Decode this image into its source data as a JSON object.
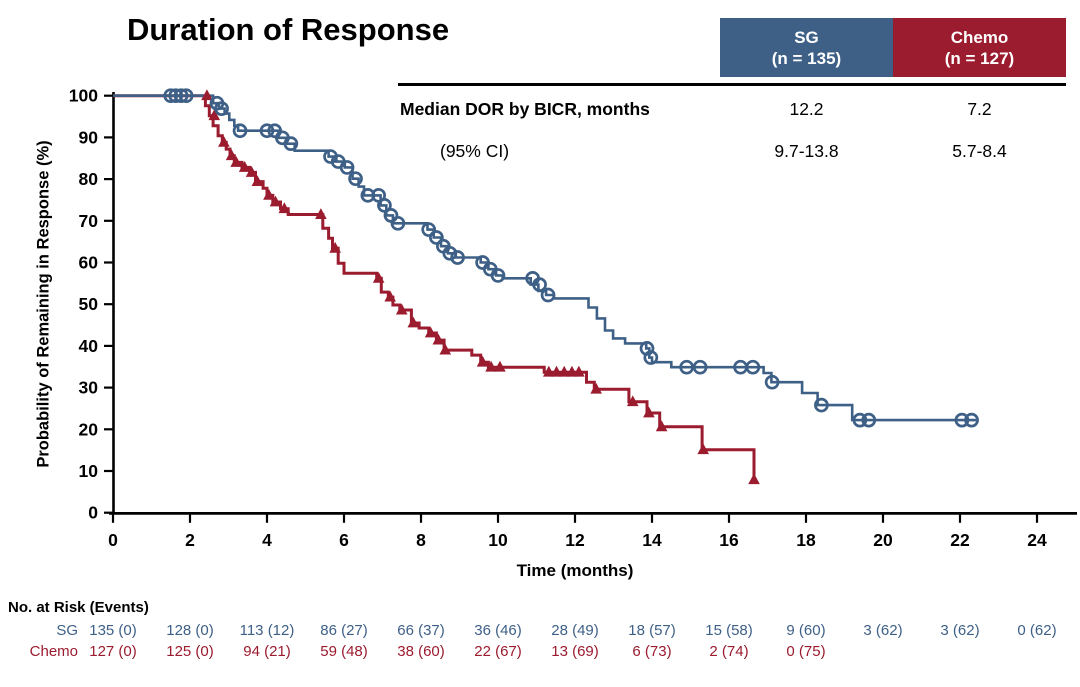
{
  "title": "Duration of Response",
  "colors": {
    "sg": "#3E6087",
    "chemo": "#9B1B2F",
    "axis": "#000000",
    "background": "#FFFFFF"
  },
  "summary_table": {
    "header": {
      "sg": {
        "line1": "SG",
        "line2": "(n = 135)"
      },
      "chemo": {
        "line1": "Chemo",
        "line2": "(n = 127)"
      }
    },
    "rows": [
      {
        "label": "Median DOR by BICR, months",
        "values": [
          "12.2",
          "7.2"
        ]
      },
      {
        "label": "(95% CI)",
        "values": [
          "9.7-13.8",
          "5.7-8.4"
        ]
      }
    ]
  },
  "chart_data": {
    "type": "line",
    "subtype": "kaplan-meier-step",
    "title": "Duration of Response",
    "xlabel": "Time (months)",
    "ylabel": "Probability of Remaining in Response (%)",
    "xlim": [
      0,
      24
    ],
    "ylim": [
      0,
      100
    ],
    "xticks": [
      0,
      2,
      4,
      6,
      8,
      10,
      12,
      14,
      16,
      18,
      20,
      22,
      24
    ],
    "yticks": [
      0,
      10,
      20,
      30,
      40,
      50,
      60,
      70,
      80,
      90,
      100
    ],
    "grid": false,
    "legend_position": "none",
    "series": [
      {
        "name": "Chemo",
        "marker": "triangle",
        "line_width": 3,
        "start": [
          0,
          100
        ],
        "end_time": 16.72,
        "steps": [
          [
            2.4,
            97.6
          ],
          [
            2.5,
            95.2
          ],
          [
            2.6,
            92.8
          ],
          [
            2.73,
            90.4
          ],
          [
            2.84,
            88.8
          ],
          [
            2.94,
            87.2
          ],
          [
            3.04,
            85.6
          ],
          [
            3.15,
            84.0
          ],
          [
            3.35,
            82.8
          ],
          [
            3.55,
            81.6
          ],
          [
            3.7,
            79.4
          ],
          [
            3.9,
            77.8
          ],
          [
            4.0,
            76.1
          ],
          [
            4.15,
            74.5
          ],
          [
            4.35,
            72.9
          ],
          [
            4.55,
            71.5
          ],
          [
            5.45,
            68.2
          ],
          [
            5.6,
            65.8
          ],
          [
            5.7,
            63.4
          ],
          [
            5.85,
            59.8
          ],
          [
            6.0,
            57.4
          ],
          [
            6.85,
            56.2
          ],
          [
            6.97,
            52.9
          ],
          [
            7.15,
            51.7
          ],
          [
            7.27,
            49.8
          ],
          [
            7.45,
            48.6
          ],
          [
            7.75,
            45.5
          ],
          [
            7.95,
            44.3
          ],
          [
            8.2,
            43.1
          ],
          [
            8.4,
            41.4
          ],
          [
            8.6,
            39.0
          ],
          [
            9.32,
            37.8
          ],
          [
            9.55,
            36.1
          ],
          [
            9.75,
            34.9
          ],
          [
            11.2,
            33.7
          ],
          [
            12.3,
            31.3
          ],
          [
            12.5,
            29.6
          ],
          [
            13.4,
            26.6
          ],
          [
            13.87,
            23.9
          ],
          [
            14.2,
            20.6
          ],
          [
            15.3,
            15.1
          ],
          [
            16.65,
            7.9
          ]
        ],
        "censors": [
          [
            2.44,
            100
          ],
          [
            2.63,
            95.2
          ],
          [
            2.88,
            88.8
          ],
          [
            3.08,
            85.6
          ],
          [
            3.2,
            84.0
          ],
          [
            3.42,
            82.8
          ],
          [
            3.6,
            81.6
          ],
          [
            3.75,
            79.4
          ],
          [
            4.05,
            76.1
          ],
          [
            4.22,
            74.5
          ],
          [
            4.45,
            72.9
          ],
          [
            5.4,
            71.5
          ],
          [
            5.77,
            63.4
          ],
          [
            6.9,
            56.2
          ],
          [
            7.2,
            51.7
          ],
          [
            7.5,
            48.6
          ],
          [
            7.8,
            45.5
          ],
          [
            8.25,
            43.1
          ],
          [
            8.45,
            41.4
          ],
          [
            8.63,
            39.0
          ],
          [
            9.6,
            36.1
          ],
          [
            9.82,
            34.9
          ],
          [
            10.05,
            34.9
          ],
          [
            11.32,
            33.7
          ],
          [
            11.52,
            33.7
          ],
          [
            11.72,
            33.7
          ],
          [
            11.92,
            33.7
          ],
          [
            12.1,
            33.7
          ],
          [
            12.55,
            29.6
          ],
          [
            13.5,
            26.6
          ],
          [
            13.92,
            23.9
          ],
          [
            14.25,
            20.6
          ],
          [
            15.33,
            15.1
          ],
          [
            16.65,
            7.9
          ]
        ]
      },
      {
        "name": "SG",
        "marker": "circle",
        "line_width": 2.6,
        "start": [
          0,
          100
        ],
        "end_time": 22.42,
        "steps": [
          [
            2.6,
            98.2
          ],
          [
            2.75,
            96.9
          ],
          [
            2.9,
            95.7
          ],
          [
            3.02,
            94.2
          ],
          [
            3.15,
            92.8
          ],
          [
            3.25,
            91.6
          ],
          [
            4.3,
            89.9
          ],
          [
            4.5,
            88.5
          ],
          [
            4.72,
            86.8
          ],
          [
            5.6,
            85.4
          ],
          [
            5.8,
            84.2
          ],
          [
            6.02,
            82.8
          ],
          [
            6.22,
            80.1
          ],
          [
            6.38,
            78.2
          ],
          [
            6.52,
            76.1
          ],
          [
            6.95,
            73.7
          ],
          [
            7.1,
            71.3
          ],
          [
            7.27,
            69.4
          ],
          [
            8.17,
            67.9
          ],
          [
            8.33,
            66.0
          ],
          [
            8.52,
            63.9
          ],
          [
            8.7,
            62.2
          ],
          [
            8.9,
            61.2
          ],
          [
            9.55,
            60.0
          ],
          [
            9.75,
            58.4
          ],
          [
            9.95,
            56.9
          ],
          [
            10.12,
            56.2
          ],
          [
            10.85,
            54.7
          ],
          [
            11.05,
            53.2
          ],
          [
            11.25,
            52.2
          ],
          [
            11.45,
            51.4
          ],
          [
            12.35,
            49.2
          ],
          [
            12.57,
            46.6
          ],
          [
            12.78,
            43.7
          ],
          [
            12.99,
            41.8
          ],
          [
            13.3,
            40.6
          ],
          [
            13.85,
            39.4
          ],
          [
            13.93,
            37.2
          ],
          [
            14.0,
            36.1
          ],
          [
            14.5,
            34.9
          ],
          [
            16.9,
            33.5
          ],
          [
            17.1,
            31.3
          ],
          [
            17.9,
            28.7
          ],
          [
            18.3,
            25.8
          ],
          [
            19.2,
            22.2
          ]
        ],
        "censors": [
          [
            1.5,
            100
          ],
          [
            1.63,
            100
          ],
          [
            1.77,
            100
          ],
          [
            1.9,
            100
          ],
          [
            2.7,
            98.2
          ],
          [
            2.82,
            96.9
          ],
          [
            3.3,
            91.6
          ],
          [
            4.0,
            91.6
          ],
          [
            4.2,
            91.6
          ],
          [
            4.4,
            89.9
          ],
          [
            4.62,
            88.5
          ],
          [
            5.65,
            85.4
          ],
          [
            5.85,
            84.2
          ],
          [
            6.08,
            82.8
          ],
          [
            6.3,
            80.1
          ],
          [
            6.62,
            76.1
          ],
          [
            6.9,
            76.1
          ],
          [
            7.05,
            73.7
          ],
          [
            7.22,
            71.3
          ],
          [
            7.4,
            69.4
          ],
          [
            8.2,
            67.9
          ],
          [
            8.4,
            66.0
          ],
          [
            8.58,
            63.9
          ],
          [
            8.75,
            62.2
          ],
          [
            8.95,
            61.2
          ],
          [
            9.6,
            60.0
          ],
          [
            9.8,
            58.4
          ],
          [
            10.0,
            56.9
          ],
          [
            10.9,
            56.2
          ],
          [
            11.08,
            54.7
          ],
          [
            11.3,
            52.2
          ],
          [
            13.87,
            39.4
          ],
          [
            13.97,
            37.2
          ],
          [
            14.9,
            34.9
          ],
          [
            15.25,
            34.9
          ],
          [
            16.3,
            34.9
          ],
          [
            16.62,
            34.9
          ],
          [
            17.12,
            31.3
          ],
          [
            18.4,
            25.8
          ],
          [
            19.4,
            22.2
          ],
          [
            19.63,
            22.2
          ],
          [
            22.05,
            22.2
          ],
          [
            22.3,
            22.2
          ]
        ]
      }
    ]
  },
  "risk_table": {
    "title": "No. at Risk (Events)",
    "months": [
      0,
      2,
      4,
      6,
      8,
      10,
      12,
      14,
      16,
      18,
      20,
      22,
      24
    ],
    "rows": [
      {
        "label": "SG",
        "values": [
          "135 (0)",
          "128 (0)",
          "113 (12)",
          "86 (27)",
          "66 (37)",
          "36 (46)",
          "28 (49)",
          "18 (57)",
          "15 (58)",
          "9 (60)",
          "3 (62)",
          "3 (62)",
          "0 (62)"
        ]
      },
      {
        "label": "Chemo",
        "values": [
          "127 (0)",
          "125 (0)",
          "94 (21)",
          "59 (48)",
          "38 (60)",
          "22 (67)",
          "13 (69)",
          "6 (73)",
          "2 (74)",
          "0 (75)"
        ]
      }
    ]
  }
}
